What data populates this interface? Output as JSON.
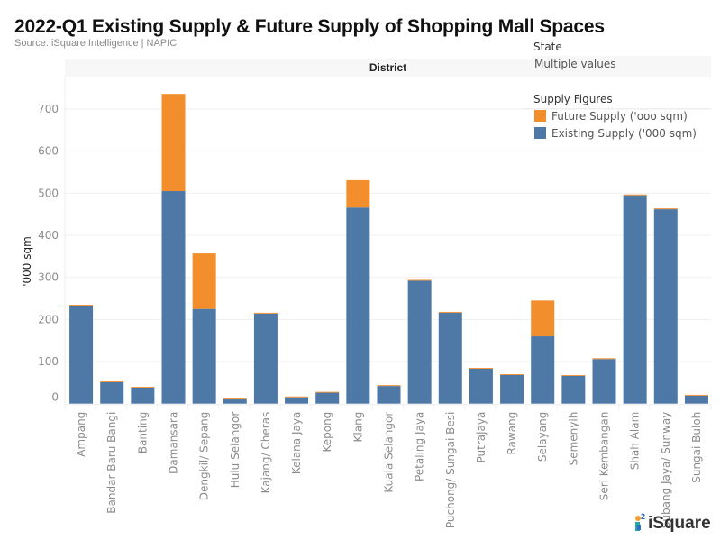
{
  "header": {
    "title": "2022-Q1 Existing Supply & Future Supply of Shopping Mall Spaces",
    "source": "Source: iSquare Intelligence | NAPIC",
    "column_header": "District"
  },
  "filters": {
    "state_label": "State",
    "state_value": "Multiple values"
  },
  "legend": {
    "title": "Supply Figures",
    "items": [
      {
        "label": "Future Supply ('ooo sqm)",
        "color": "#f28e2b"
      },
      {
        "label": "Existing Supply ('000 sqm)",
        "color": "#4e79a7"
      }
    ]
  },
  "logo": {
    "text": "iSquare"
  },
  "chart_data": {
    "type": "bar",
    "stacked": true,
    "title": "2022-Q1 Existing Supply & Future Supply of Shopping Mall Spaces",
    "subtitle": "Source: iSquare Intelligence | NAPIC",
    "xlabel": "District",
    "ylabel": "'000 sqm",
    "ylim": [
      0,
      760
    ],
    "yticks": [
      0,
      100,
      200,
      300,
      400,
      500,
      600,
      700
    ],
    "grid": true,
    "legend_position": "top-right",
    "categories": [
      "Ampang",
      "Bandar Baru Bangi",
      "Banting",
      "Damansara",
      "Dengkil/ Sepang",
      "Hulu Selangor",
      "Kajang/ Cheras",
      "Kelana Jaya",
      "Kepong",
      "Klang",
      "Kuala Selangor",
      "Petaling Jaya",
      "Puchong/ Sungai Besi",
      "Putrajaya",
      "Rawang",
      "Selayang",
      "Semenyih",
      "Seri Kembangan",
      "Shah Alam",
      "Subang Jaya/ Sunway",
      "Sungai Buloh"
    ],
    "series": [
      {
        "name": "Existing Supply ('000 sqm)",
        "color": "#4e79a7",
        "values": [
          233,
          51,
          38,
          505,
          225,
          10,
          214,
          15,
          26,
          466,
          42,
          292,
          216,
          83,
          68,
          160,
          66,
          106,
          495,
          462,
          19
        ]
      },
      {
        "name": "Future Supply ('ooo sqm)",
        "color": "#f28e2b",
        "values": [
          2,
          2,
          2,
          231,
          132,
          2,
          2,
          2,
          2,
          65,
          2,
          2,
          2,
          2,
          2,
          85,
          2,
          2,
          2,
          2,
          2
        ]
      }
    ]
  }
}
